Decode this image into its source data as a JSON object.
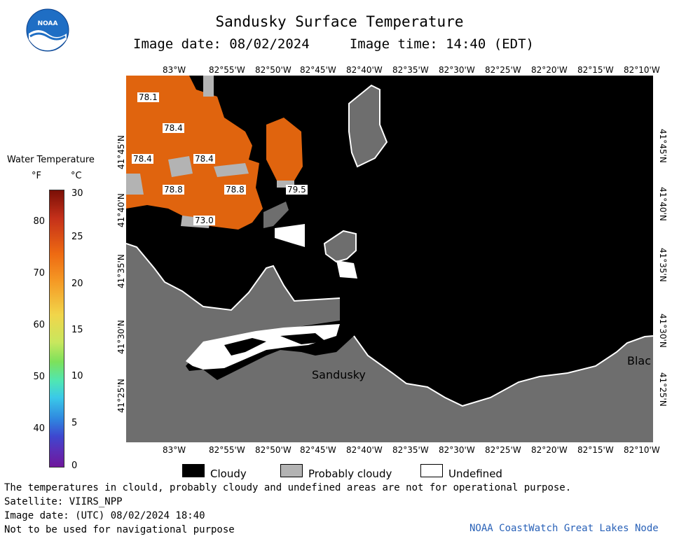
{
  "header": {
    "title": "Sandusky Surface Temperature",
    "subtitle": "Image date: 08/02/2024     Image time: 14:40 (EDT)"
  },
  "logo": {
    "text": "NOAA",
    "icon": "noaa-logo-icon"
  },
  "legend": {
    "title": "Water Temperature",
    "unit_f": "°F",
    "unit_c": "°C",
    "ticks_f": [
      "80",
      "70",
      "60",
      "50",
      "40"
    ],
    "ticks_c": [
      "30",
      "25",
      "20",
      "15",
      "10",
      "5",
      "0"
    ]
  },
  "axes": {
    "lon_labels": [
      "83°W",
      "82°55'W",
      "82°50'W",
      "82°45'W",
      "82°40'W",
      "82°35'W",
      "82°30'W",
      "82°25'W",
      "82°20'W",
      "82°15'W",
      "82°10'W"
    ],
    "lat_labels": [
      "41°45'N",
      "41°40'N",
      "41°35'N",
      "41°30'N",
      "41°25'N"
    ]
  },
  "map": {
    "temp_labels": [
      "78.1",
      "78.4",
      "78.4",
      "78.4",
      "78.8",
      "78.8",
      "79.5",
      "73.0"
    ],
    "places": [
      "Sandusky",
      "Blac"
    ]
  },
  "cloud_legend": {
    "cloudy": "Cloudy",
    "probably_cloudy": "Probably cloudy",
    "undefined": "Undefined"
  },
  "footer": {
    "note": "The temperatures in clould, probably cloudy and undefined areas are not for operational purpose.",
    "satellite": "Satellite: VIIRS_NPP",
    "utc_date": "Image date: (UTC) 08/02/2024  18:40",
    "nav_warning": "Not to be used for navigational purpose",
    "credit": "NOAA CoastWatch Great Lakes Node"
  },
  "colors": {
    "land": "#6e6e6e",
    "cloud": "#000000",
    "probably_cloudy": "#b3b3b3",
    "undefined": "#ffffff",
    "warm_water": "#e0640e"
  }
}
